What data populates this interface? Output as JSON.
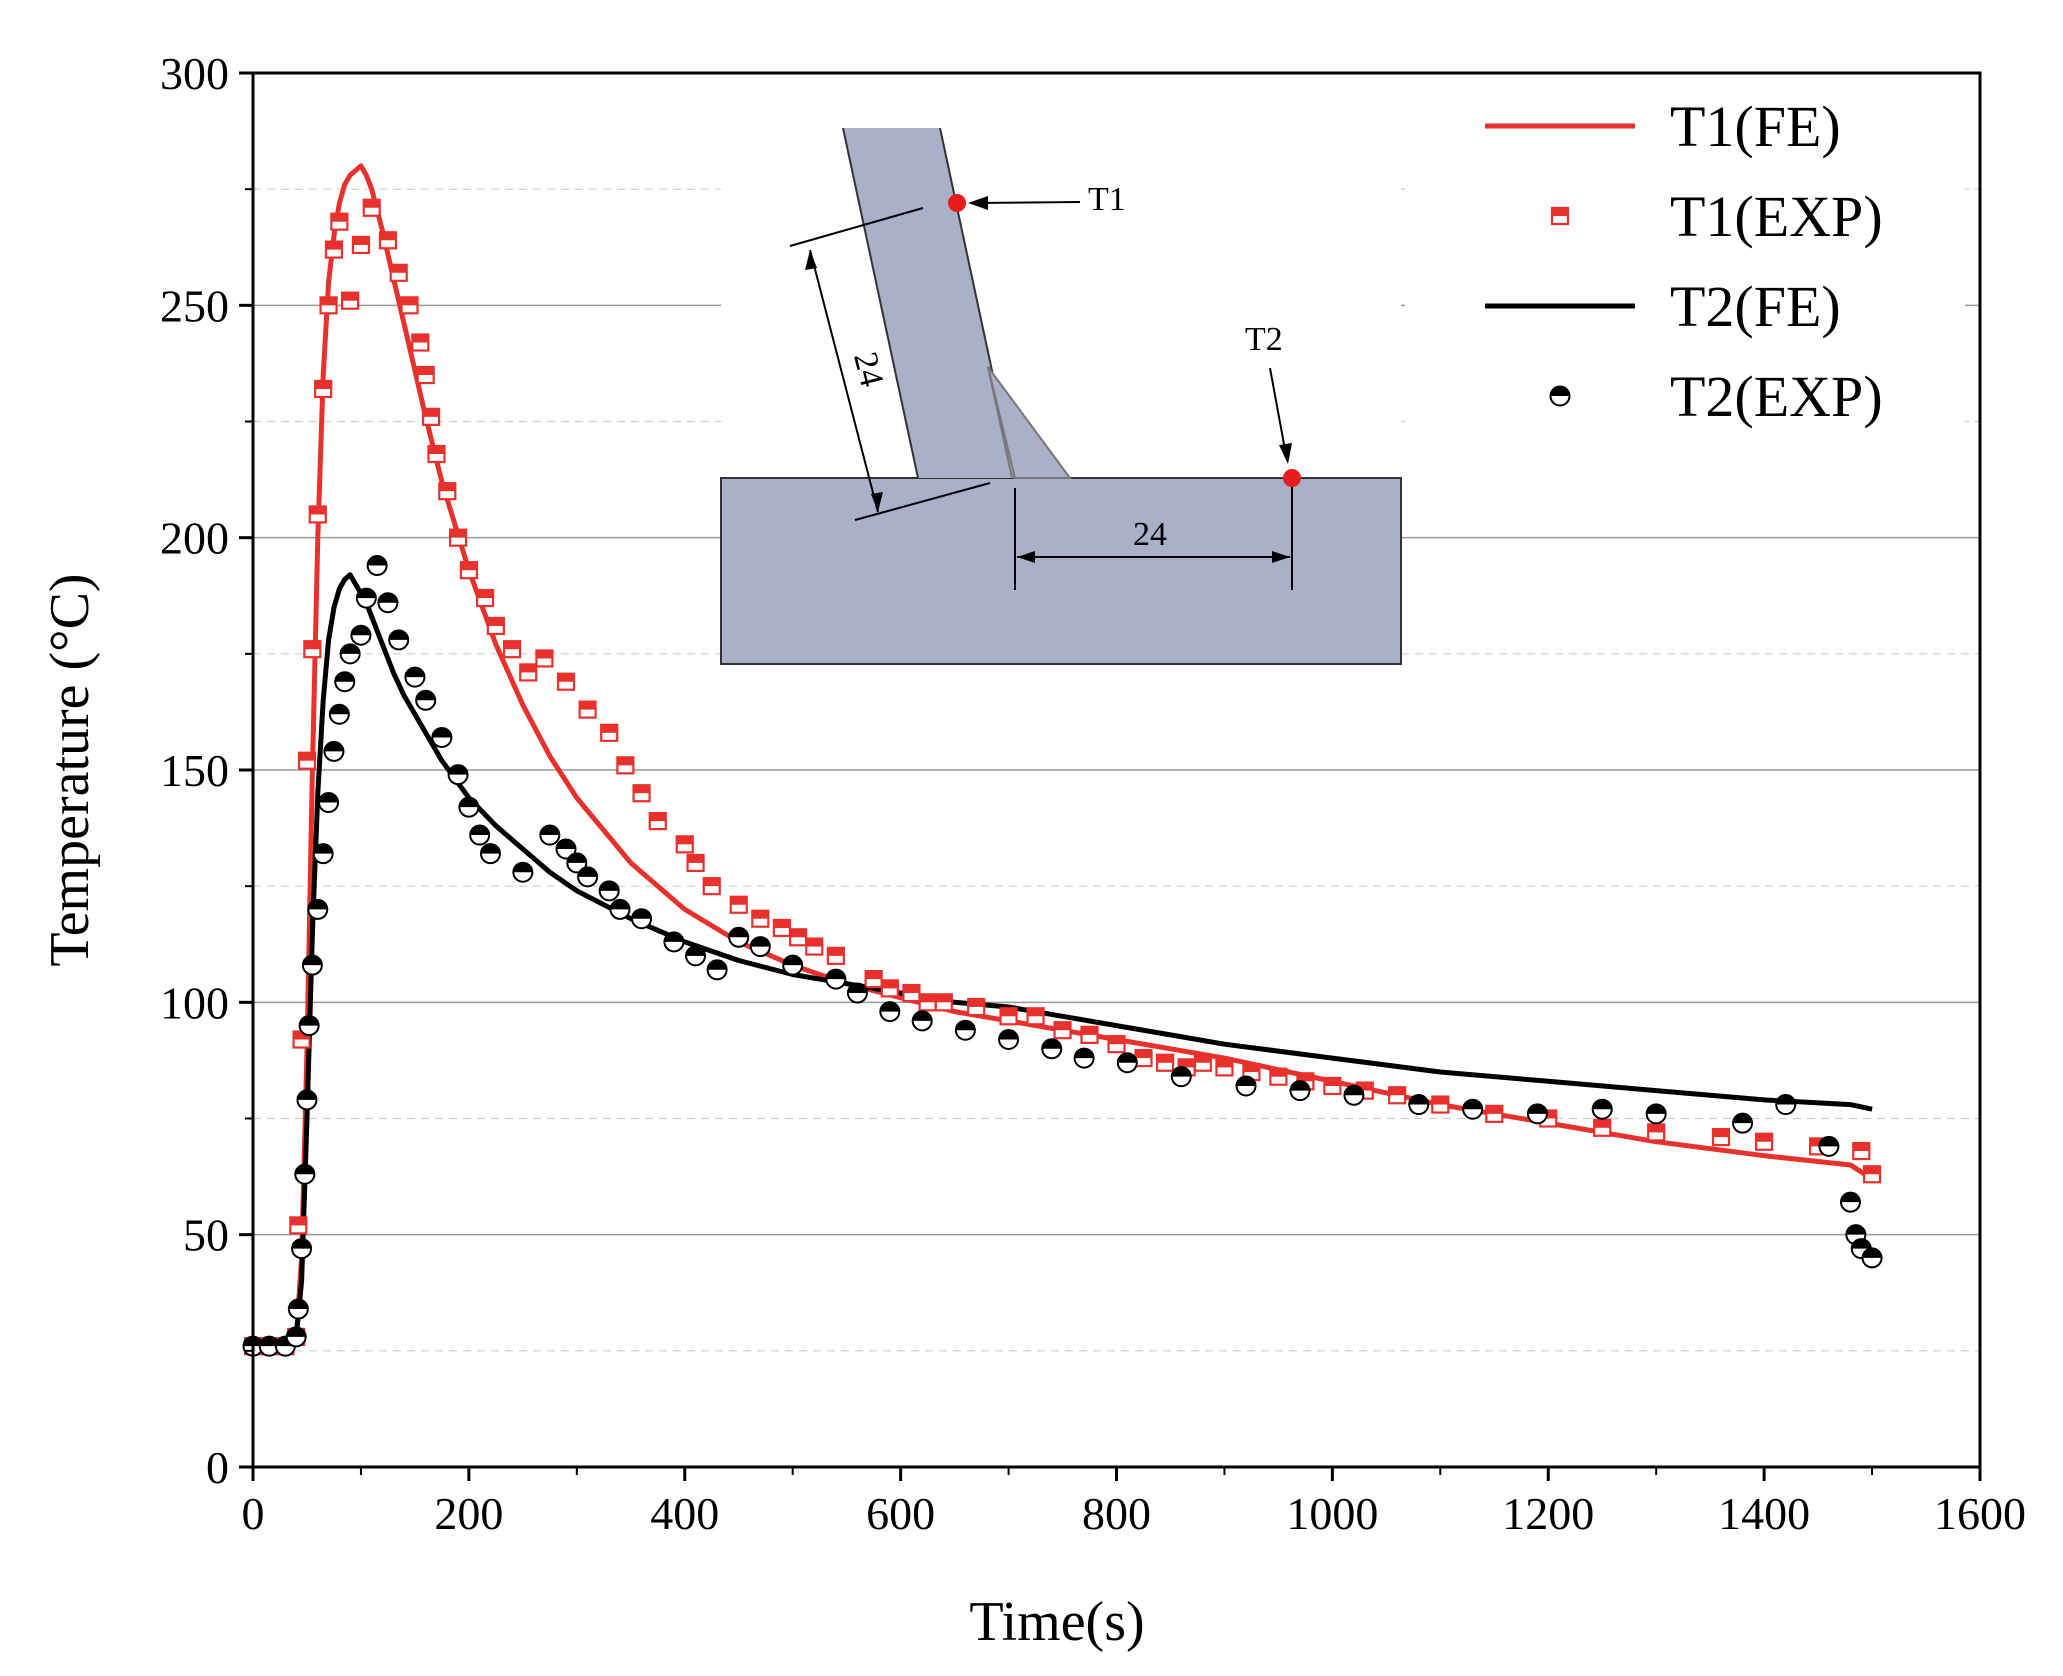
{
  "chart_data": {
    "type": "line",
    "xlabel": "Time(s)",
    "ylabel": "Temperature (°C)",
    "xlim": [
      0,
      1600
    ],
    "ylim": [
      0,
      300
    ],
    "x_ticks": [
      0,
      200,
      400,
      600,
      800,
      1000,
      1200,
      1400,
      1600
    ],
    "y_ticks": [
      0,
      50,
      100,
      150,
      200,
      250,
      300
    ],
    "grid": true,
    "legend_position": "top-right",
    "colors": {
      "t1": "#e8302d",
      "t2": "#000000",
      "grid_major": "#9a9a9a",
      "grid_minor": "#cfcfcf",
      "inset_fill": "#a9b0c8",
      "marker_red": "#e81c1c"
    },
    "series": [
      {
        "name": "T1(FE)",
        "style": "line",
        "color": "#e8302d",
        "x": [
          0,
          30,
          40,
          45,
          50,
          55,
          60,
          65,
          70,
          75,
          80,
          85,
          90,
          95,
          100,
          105,
          110,
          120,
          130,
          140,
          150,
          160,
          175,
          200,
          225,
          250,
          275,
          300,
          350,
          400,
          450,
          500,
          550,
          600,
          650,
          700,
          750,
          800,
          850,
          900,
          1000,
          1100,
          1200,
          1300,
          1400,
          1480,
          1500
        ],
        "y": [
          26,
          26,
          28,
          45,
          90,
          150,
          200,
          235,
          255,
          265,
          272,
          276,
          278,
          279,
          280,
          278,
          275,
          266,
          256,
          246,
          236,
          226,
          212,
          193,
          177,
          164,
          153,
          144,
          130,
          120,
          113,
          108,
          104,
          101,
          98,
          96,
          94,
          92,
          90,
          88,
          83,
          78,
          74,
          70,
          67,
          65,
          62
        ]
      },
      {
        "name": "T1(EXP)",
        "style": "half-filled-square",
        "color": "#e8302d",
        "x": [
          0,
          15,
          30,
          40,
          42,
          45,
          50,
          55,
          60,
          65,
          70,
          75,
          80,
          90,
          100,
          110,
          125,
          135,
          145,
          155,
          160,
          165,
          170,
          180,
          190,
          200,
          215,
          225,
          240,
          255,
          270,
          290,
          310,
          330,
          345,
          360,
          375,
          400,
          410,
          425,
          450,
          470,
          490,
          505,
          520,
          540,
          575,
          590,
          610,
          625,
          640,
          670,
          700,
          725,
          750,
          775,
          800,
          825,
          845,
          865,
          880,
          900,
          925,
          950,
          975,
          1000,
          1030,
          1060,
          1100,
          1150,
          1200,
          1250,
          1300,
          1360,
          1400,
          1450,
          1490,
          1500
        ],
        "y": [
          26,
          26,
          26,
          28,
          52,
          92,
          152,
          176,
          205,
          232,
          250,
          262,
          268,
          251,
          263,
          271,
          264,
          257,
          250,
          242,
          235,
          226,
          218,
          210,
          200,
          193,
          187,
          181,
          176,
          171,
          174,
          169,
          163,
          158,
          151,
          145,
          139,
          134,
          130,
          125,
          121,
          118,
          116,
          114,
          112,
          110,
          105,
          103,
          102,
          100,
          100,
          99,
          97,
          97,
          94,
          93,
          91,
          88,
          87,
          86,
          87,
          86,
          85,
          84,
          83,
          82,
          81,
          80,
          78,
          76,
          75,
          73,
          72,
          71,
          70,
          69,
          68,
          63
        ]
      },
      {
        "name": "T2(FE)",
        "style": "line",
        "color": "#000000",
        "x": [
          0,
          30,
          40,
          45,
          50,
          55,
          60,
          65,
          70,
          75,
          80,
          85,
          90,
          95,
          100,
          105,
          110,
          120,
          130,
          140,
          150,
          175,
          200,
          225,
          250,
          275,
          300,
          350,
          400,
          450,
          500,
          550,
          600,
          650,
          700,
          750,
          800,
          850,
          900,
          1000,
          1100,
          1200,
          1300,
          1400,
          1480,
          1500
        ],
        "y": [
          26,
          26,
          28,
          40,
          75,
          115,
          145,
          165,
          178,
          185,
          189,
          191,
          192,
          190,
          188,
          186,
          183,
          177,
          171,
          166,
          162,
          152,
          144,
          138,
          133,
          128,
          124,
          118,
          113,
          109,
          106,
          104,
          102,
          100,
          99,
          97,
          95,
          93,
          91,
          88,
          85,
          83,
          81,
          79,
          78,
          77
        ]
      },
      {
        "name": "T2(EXP)",
        "style": "half-filled-circle",
        "color": "#000000",
        "x": [
          0,
          15,
          30,
          40,
          42,
          45,
          48,
          50,
          52,
          55,
          60,
          65,
          70,
          75,
          80,
          85,
          90,
          100,
          105,
          115,
          125,
          135,
          150,
          160,
          175,
          190,
          200,
          210,
          220,
          250,
          275,
          290,
          300,
          310,
          330,
          340,
          360,
          390,
          410,
          430,
          450,
          470,
          500,
          540,
          560,
          590,
          620,
          660,
          700,
          740,
          770,
          810,
          860,
          920,
          970,
          1020,
          1080,
          1130,
          1190,
          1250,
          1300,
          1380,
          1420,
          1460,
          1480,
          1485,
          1490,
          1500
        ],
        "y": [
          26,
          26,
          26,
          28,
          34,
          47,
          63,
          79,
          95,
          108,
          120,
          132,
          143,
          154,
          162,
          169,
          175,
          179,
          187,
          194,
          186,
          178,
          170,
          165,
          157,
          149,
          142,
          136,
          132,
          128,
          136,
          133,
          130,
          127,
          124,
          120,
          118,
          113,
          110,
          107,
          114,
          112,
          108,
          105,
          102,
          98,
          96,
          94,
          92,
          90,
          88,
          87,
          84,
          82,
          81,
          80,
          78,
          77,
          76,
          77,
          76,
          74,
          78,
          69,
          57,
          50,
          47,
          45
        ]
      }
    ],
    "inset": {
      "labels": {
        "t1": "T1",
        "t2": "T2",
        "dim_vertical": "24",
        "dim_horizontal": "24"
      }
    }
  }
}
